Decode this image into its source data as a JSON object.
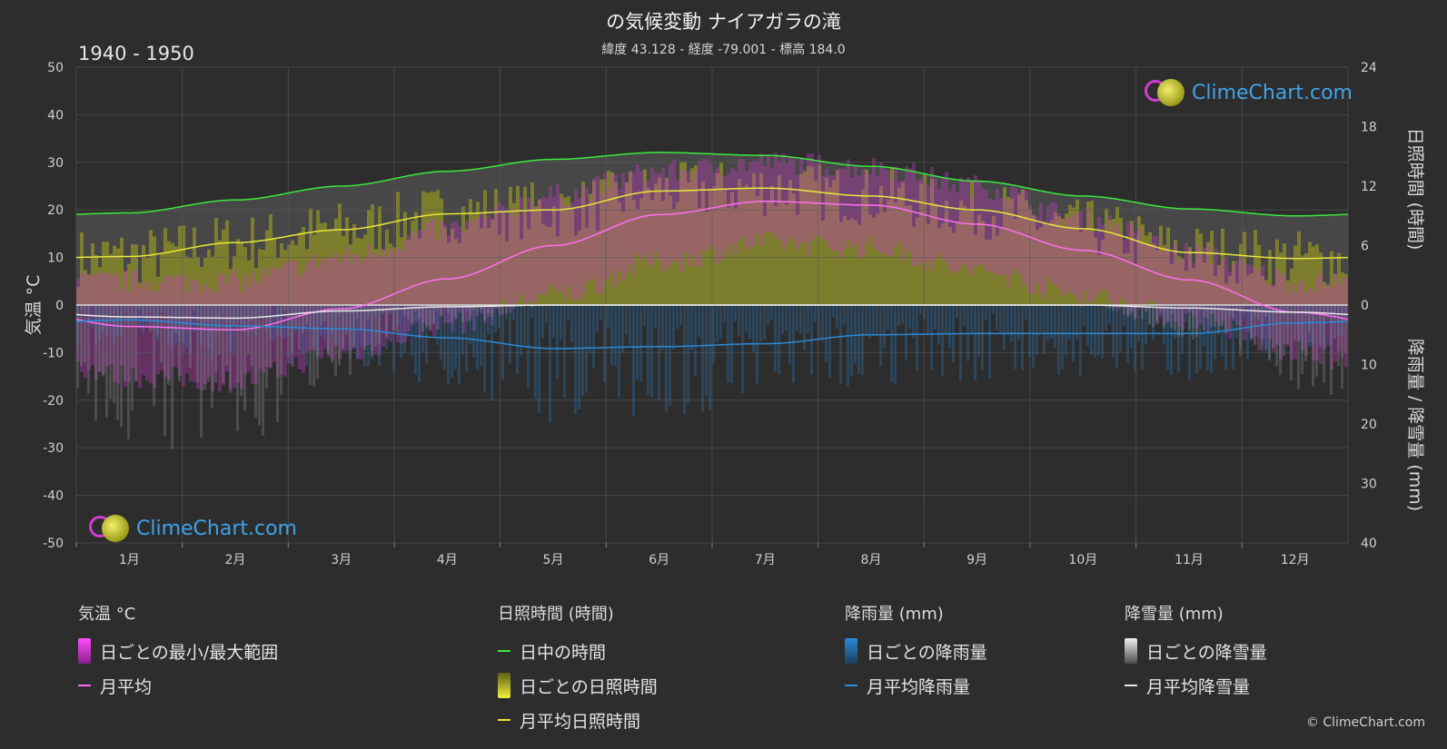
{
  "header": {
    "title": "の気候変動 ナイアガラの滝",
    "subtitle": "緯度 43.128 - 経度 -79.001 - 標高 184.0",
    "period": "1940 - 1950"
  },
  "logo": {
    "text": "ClimeChart.com"
  },
  "copyright": "© ClimeChart.com",
  "axes": {
    "left_title": "気温 °C",
    "right_top_title": "日照時間 (時間)",
    "right_bottom_title": "降雨量 / 降雪量 (mm)"
  },
  "legend": {
    "temperature": {
      "title": "気温 °C",
      "range": "日ごとの最小/最大範囲",
      "avg": "月平均"
    },
    "sunshine": {
      "title": "日照時間 (時間)",
      "daylight": "日中の時間",
      "daily": "日ごとの日照時間",
      "avg": "月平均日照時間"
    },
    "rain": {
      "title": "降雨量 (mm)",
      "daily": "日ごとの降雨量",
      "avg": "月平均降雨量"
    },
    "snow": {
      "title": "降雪量 (mm)",
      "daily": "日ごとの降雪量",
      "avg": "月平均降雪量"
    }
  },
  "colors": {
    "background": "#2d2d2d",
    "grid": "#5a5a5a",
    "daylight": "#3ee83e",
    "sunshine_avg": "#e8e83a",
    "sunshine_fill": "#8f8f26",
    "temp_avg": "#ff6ef0",
    "temp_range": "#c93cc9",
    "rain": "#2a8ad8",
    "snow": "#e8e8e8"
  },
  "chart_data": {
    "type": "line",
    "categories": [
      "1月",
      "2月",
      "3月",
      "4月",
      "5月",
      "6月",
      "7月",
      "8月",
      "9月",
      "10月",
      "11月",
      "12月"
    ],
    "left_axis": {
      "ylim": [
        -50,
        50
      ],
      "ticks": [
        50,
        40,
        30,
        20,
        10,
        0,
        -10,
        -20,
        -30,
        -40,
        -50
      ]
    },
    "right_axis_sunshine": {
      "ylim": [
        0,
        24
      ],
      "ticks": [
        24,
        18,
        12,
        6,
        0
      ]
    },
    "right_axis_precip": {
      "ylim": [
        0,
        40
      ],
      "ticks": [
        0,
        10,
        20,
        30,
        40
      ]
    },
    "series": [
      {
        "name": "日中の時間",
        "axis": "sunshine",
        "values": [
          9.3,
          10.6,
          12.0,
          13.5,
          14.7,
          15.4,
          15.1,
          14.0,
          12.5,
          11.0,
          9.7,
          9.0
        ]
      },
      {
        "name": "月平均日照時間",
        "axis": "sunshine",
        "values": [
          4.9,
          6.3,
          7.6,
          9.2,
          9.6,
          11.5,
          11.8,
          11.0,
          9.6,
          7.7,
          5.3,
          4.7
        ]
      },
      {
        "name": "月平均",
        "axis": "temperature",
        "values": [
          -4.5,
          -5.2,
          -0.8,
          5.5,
          12.5,
          19.0,
          21.8,
          21.0,
          17.0,
          11.5,
          5.3,
          -1.5
        ]
      },
      {
        "name": "日ごとの最小/最大範囲 (最大)",
        "axis": "temperature",
        "values": [
          5,
          5,
          10,
          16,
          23,
          28,
          30,
          29,
          25,
          18,
          11,
          5
        ]
      },
      {
        "name": "日ごとの最小/最大範囲 (最小)",
        "axis": "temperature",
        "values": [
          -15,
          -16,
          -10,
          -4,
          2,
          9,
          13,
          12,
          7,
          2,
          -3,
          -10
        ]
      },
      {
        "name": "月平均降雨量",
        "axis": "precip",
        "values": [
          2.5,
          3.5,
          4.0,
          5.5,
          7.3,
          7.0,
          6.5,
          5.0,
          4.8,
          4.8,
          4.8,
          3.0
        ]
      },
      {
        "name": "月平均降雪量",
        "axis": "precip",
        "values": [
          2.0,
          2.2,
          1.0,
          0.3,
          0.0,
          0.0,
          0.0,
          0.0,
          0.0,
          0.0,
          0.5,
          1.2
        ]
      }
    ]
  }
}
